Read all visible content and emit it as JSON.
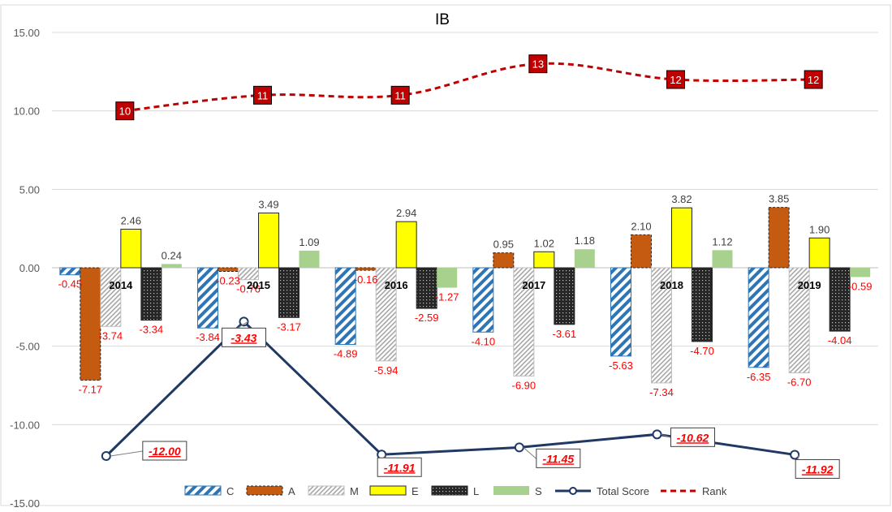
{
  "chart_data": {
    "type": "bar",
    "title": "IB",
    "xlabel": "",
    "ylabel": "",
    "ylim": [
      -15,
      15
    ],
    "yticks": [
      -15,
      -10,
      -5,
      0,
      5,
      10,
      15
    ],
    "ytick_labels": [
      "-15.00",
      "-10.00",
      "-5.00",
      "0.00",
      "5.00",
      "10.00",
      "15.00"
    ],
    "grid": true,
    "legend_position": "bottom",
    "categories": [
      "2014",
      "2015",
      "2016",
      "2017",
      "2018",
      "2019"
    ],
    "series": [
      {
        "name": "C",
        "kind": "bar",
        "pattern": "diag-stripes",
        "color": "#2e75b6",
        "values": [
          -0.45,
          -3.84,
          -4.89,
          -4.1,
          -5.63,
          -6.35
        ],
        "labels": [
          "-0.45",
          "-3.84",
          "-4.89",
          "-4.10",
          "-5.63",
          "-6.35"
        ]
      },
      {
        "name": "A",
        "kind": "bar",
        "pattern": "solid",
        "color": "#c55a11",
        "values": [
          -7.17,
          -0.23,
          -0.16,
          0.95,
          2.1,
          3.85
        ],
        "labels": [
          "-7.17",
          "-0.23",
          "-0.16",
          "0.95",
          "2.10",
          "3.85"
        ]
      },
      {
        "name": "M",
        "kind": "bar",
        "pattern": "diag-hatch",
        "color": "#a6a6a6",
        "values": [
          -3.74,
          -0.76,
          -5.94,
          -6.9,
          -7.34,
          -6.7
        ],
        "labels": [
          "-3.74",
          "-0.76",
          "-5.94",
          "-6.90",
          "-7.34",
          "-6.70"
        ]
      },
      {
        "name": "E",
        "kind": "bar",
        "pattern": "solid",
        "color": "#ffff00",
        "values": [
          2.46,
          3.49,
          2.94,
          1.02,
          3.82,
          1.9
        ],
        "labels": [
          "2.46",
          "3.49",
          "2.94",
          "1.02",
          "3.82",
          "1.90"
        ]
      },
      {
        "name": "L",
        "kind": "bar",
        "pattern": "dots",
        "color": "#262626",
        "values": [
          -3.34,
          -3.17,
          -2.59,
          -3.61,
          -4.7,
          -4.04
        ],
        "labels": [
          "-3.34",
          "-3.17",
          "-2.59",
          "-3.61",
          "-4.70",
          "-4.04"
        ]
      },
      {
        "name": "S",
        "kind": "bar",
        "pattern": "solid",
        "color": "#a9d18e",
        "values": [
          0.24,
          1.09,
          -1.27,
          1.18,
          1.12,
          -0.59
        ],
        "labels": [
          "0.24",
          "1.09",
          "-1.27",
          "1.18",
          "1.12",
          "-0.59"
        ]
      },
      {
        "name": "Total Score",
        "kind": "line",
        "color": "#1f3864",
        "values": [
          -12.0,
          -3.43,
          -11.91,
          -11.45,
          -10.62,
          -11.92
        ],
        "labels": [
          "-12.00",
          "-3.43",
          "-11.91",
          "-11.45",
          "-10.62",
          "-11.92"
        ]
      },
      {
        "name": "Rank",
        "kind": "dashed-line",
        "color": "#c00000",
        "values": [
          10,
          11,
          11,
          13,
          12,
          12
        ],
        "labels": [
          "10",
          "11",
          "11",
          "13",
          "12",
          "12"
        ]
      }
    ]
  }
}
